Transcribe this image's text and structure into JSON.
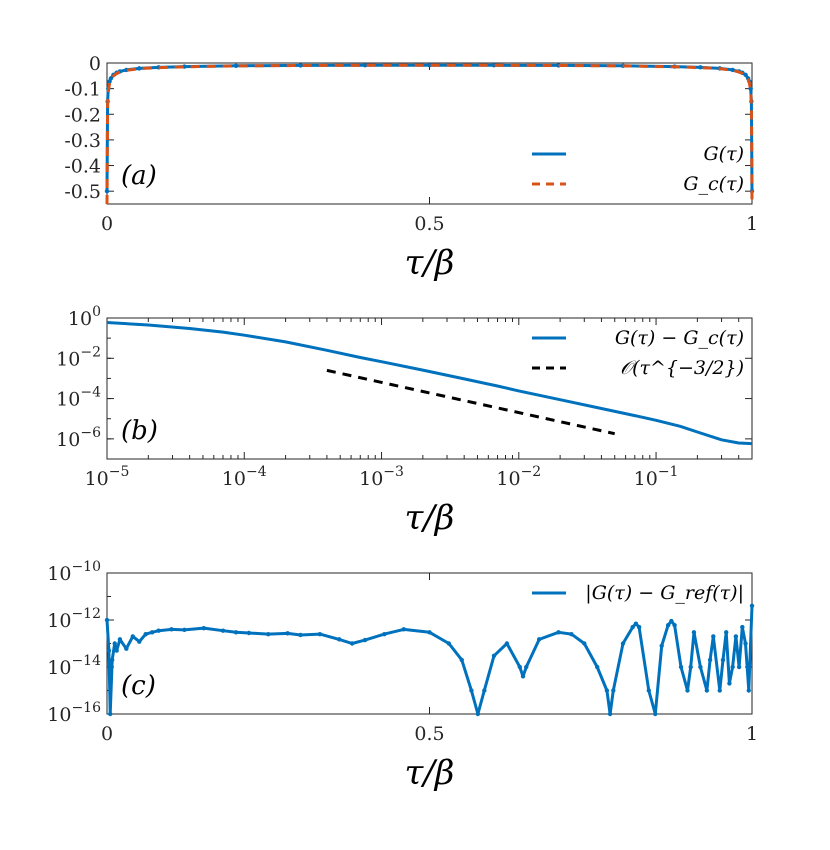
{
  "chart_data": [
    {
      "panel_label": "(a)",
      "type": "line",
      "xlabel": "τ/β",
      "ylabel": "",
      "xlim": [
        0,
        1
      ],
      "ylim": [
        -0.55,
        0
      ],
      "x_scale": "linear",
      "y_scale": "linear",
      "xticks": [
        0,
        0.5,
        1
      ],
      "xtick_labels": [
        "0",
        "0.5",
        "1"
      ],
      "yticks": [
        0,
        -0.1,
        -0.2,
        -0.3,
        -0.4,
        -0.5
      ],
      "ytick_labels": [
        "0",
        "-0.1",
        "-0.2",
        "-0.3",
        "-0.4",
        "-0.5"
      ],
      "legend_position": "bottom-right",
      "series": [
        {
          "name": "G(τ)",
          "color": "#0072BD",
          "style": "solid-dots",
          "x": [
            0,
            0.001,
            0.002,
            0.004,
            0.006,
            0.01,
            0.015,
            0.02,
            0.03,
            0.05,
            0.08,
            0.12,
            0.2,
            0.3,
            0.4,
            0.5,
            0.6,
            0.7,
            0.8,
            0.88,
            0.92,
            0.95,
            0.97,
            0.98,
            0.985,
            0.99,
            0.994,
            0.996,
            0.998,
            0.999,
            1
          ],
          "y": [
            -0.5,
            -0.15,
            -0.1,
            -0.072,
            -0.06,
            -0.046,
            -0.038,
            -0.033,
            -0.027,
            -0.021,
            -0.017,
            -0.014,
            -0.011,
            -0.0095,
            -0.0088,
            -0.0085,
            -0.0088,
            -0.0095,
            -0.011,
            -0.014,
            -0.017,
            -0.021,
            -0.027,
            -0.033,
            -0.038,
            -0.046,
            -0.06,
            -0.072,
            -0.1,
            -0.15,
            -0.5
          ]
        },
        {
          "name": "G_c(τ)",
          "color": "#D95319",
          "style": "dashed",
          "x": [
            0,
            0.001,
            0.002,
            0.004,
            0.006,
            0.01,
            0.015,
            0.02,
            0.03,
            0.05,
            0.08,
            0.12,
            0.2,
            0.3,
            0.4,
            0.5,
            0.6,
            0.7,
            0.8,
            0.88,
            0.92,
            0.95,
            0.97,
            0.98,
            0.985,
            0.99,
            0.994,
            0.996,
            0.998,
            0.999,
            1
          ],
          "y": [
            -0.55,
            -0.16,
            -0.11,
            -0.078,
            -0.064,
            -0.05,
            -0.041,
            -0.035,
            -0.029,
            -0.022,
            -0.018,
            -0.015,
            -0.0115,
            -0.0098,
            -0.009,
            -0.0087,
            -0.009,
            -0.0098,
            -0.0115,
            -0.015,
            -0.018,
            -0.022,
            -0.029,
            -0.035,
            -0.041,
            -0.05,
            -0.064,
            -0.078,
            -0.11,
            -0.16,
            -0.55
          ]
        }
      ]
    },
    {
      "panel_label": "(b)",
      "type": "line",
      "xlabel": "τ/β",
      "ylabel": "",
      "xlim": [
        1e-05,
        0.5
      ],
      "ylim": [
        1e-07,
        1
      ],
      "x_scale": "log",
      "y_scale": "log",
      "xticks": [
        1e-05,
        0.0001,
        0.001,
        0.01,
        0.1
      ],
      "xtick_labels": [
        [
          "10",
          "−5"
        ],
        [
          "10",
          "−4"
        ],
        [
          "10",
          "−3"
        ],
        [
          "10",
          "−2"
        ],
        [
          "10",
          "−1"
        ]
      ],
      "yticks": [
        1,
        0.01,
        0.0001,
        1e-06
      ],
      "ytick_labels": [
        [
          "10",
          "0"
        ],
        [
          "10",
          "−2"
        ],
        [
          "10",
          "−4"
        ],
        [
          "10",
          "−6"
        ]
      ],
      "legend_position": "top-right",
      "series": [
        {
          "name": "G(τ) − G_c(τ)",
          "color": "#0072BD",
          "style": "solid",
          "x": [
            1e-05,
            2e-05,
            4e-05,
            7e-05,
            0.0001,
            0.0002,
            0.0004,
            0.0007,
            0.001,
            0.002,
            0.004,
            0.007,
            0.01,
            0.02,
            0.04,
            0.07,
            0.1,
            0.15,
            0.2,
            0.3,
            0.4,
            0.5
          ],
          "y": [
            0.6,
            0.45,
            0.3,
            0.2,
            0.14,
            0.065,
            0.025,
            0.011,
            0.0068,
            0.0026,
            0.00095,
            0.00042,
            0.00024,
            8.8e-05,
            3.2e-05,
            1.42e-05,
            8.3e-06,
            4.2e-06,
            2.2e-06,
            9e-07,
            6.2e-07,
            5.8e-07
          ]
        },
        {
          "name": "𝒪(τ^{−3/2})",
          "color": "#000000",
          "style": "dashed",
          "x": [
            0.0004,
            0.05
          ],
          "y": [
            0.0025,
            1.8e-06
          ]
        }
      ]
    },
    {
      "panel_label": "(c)",
      "type": "line",
      "xlabel": "τ/β",
      "ylabel": "",
      "xlim": [
        0,
        1
      ],
      "ylim": [
        1e-16,
        1e-10
      ],
      "x_scale": "linear",
      "y_scale": "log",
      "xticks": [
        0,
        0.5,
        1
      ],
      "xtick_labels": [
        "0",
        "0.5",
        "1"
      ],
      "yticks": [
        1e-10,
        1e-12,
        1e-14,
        1e-16
      ],
      "ytick_labels": [
        [
          "10",
          "−10"
        ],
        [
          "10",
          "−12"
        ],
        [
          "10",
          "−14"
        ],
        [
          "10",
          "−16"
        ]
      ],
      "legend_position": "top-right",
      "series": [
        {
          "name": "|G(τ) − G_ref(τ)|",
          "color": "#0072BD",
          "style": "solid-dots",
          "x": [
            0,
            0.003,
            0.005,
            0.008,
            0.012,
            0.015,
            0.02,
            0.03,
            0.04,
            0.05,
            0.06,
            0.07,
            0.08,
            0.1,
            0.12,
            0.15,
            0.18,
            0.2,
            0.22,
            0.25,
            0.28,
            0.3,
            0.33,
            0.36,
            0.38,
            0.4,
            0.43,
            0.46,
            0.5,
            0.53,
            0.55,
            0.565,
            0.575,
            0.585,
            0.6,
            0.62,
            0.64,
            0.645,
            0.65,
            0.67,
            0.7,
            0.72,
            0.74,
            0.76,
            0.775,
            0.78,
            0.785,
            0.8,
            0.815,
            0.82,
            0.825,
            0.84,
            0.85,
            0.86,
            0.87,
            0.875,
            0.88,
            0.89,
            0.9,
            0.905,
            0.91,
            0.92,
            0.93,
            0.935,
            0.94,
            0.95,
            0.955,
            0.96,
            0.965,
            0.97,
            0.975,
            0.98,
            0.985,
            0.99,
            0.995,
            1
          ],
          "y": [
            1e-12,
            5e-14,
            1e-16,
            2e-14,
            1e-13,
            5e-14,
            1.5e-13,
            6e-14,
            2e-13,
            1.2e-13,
            2.5e-13,
            3e-13,
            3.5e-13,
            4e-13,
            3.8e-13,
            4.5e-13,
            3.5e-13,
            3e-13,
            2.8e-13,
            2.5e-13,
            2.7e-13,
            2.3e-13,
            2.5e-13,
            1.5e-13,
            1e-13,
            1.4e-13,
            2.5e-13,
            4e-13,
            3e-13,
            1e-13,
            2e-14,
            1e-15,
            1e-16,
            1e-15,
            3e-14,
            1e-13,
            1e-14,
            4e-15,
            1e-14,
            1.5e-13,
            3e-13,
            2.5e-13,
            1e-13,
            1e-14,
            1e-15,
            1e-16,
            1e-15,
            1e-13,
            5e-13,
            7e-13,
            5e-13,
            1e-15,
            1e-16,
            8e-14,
            6e-13,
            9e-13,
            6e-13,
            1e-14,
            1e-15,
            1e-14,
            3e-13,
            1e-14,
            1e-15,
            2e-14,
            2e-13,
            1e-15,
            2e-14,
            3e-13,
            2e-15,
            1e-14,
            2e-13,
            1e-14,
            5e-13,
            1e-13,
            1e-15,
            4e-12
          ]
        }
      ]
    }
  ]
}
